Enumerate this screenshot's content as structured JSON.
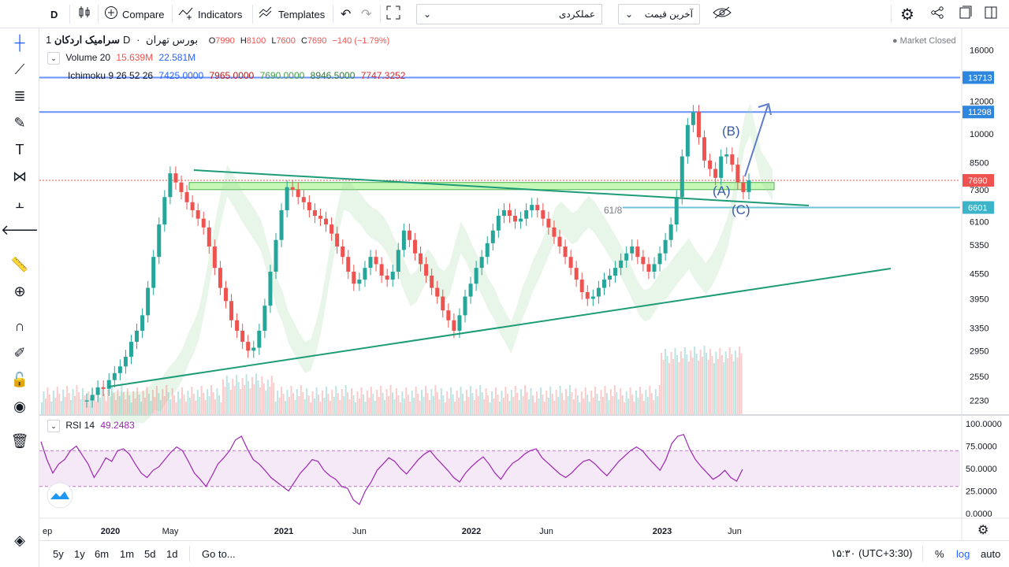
{
  "toolbar": {
    "interval": "D",
    "compare": "Compare",
    "indicators": "Indicators",
    "templates": "Templates",
    "dropdown_performance": "عملکردی",
    "dropdown_price": "آخرین قیمت"
  },
  "legend": {
    "symbol": "سرامیک اردکان",
    "interval": "1D",
    "exchange": "بورس تهران",
    "o_label": "O",
    "o": "7990",
    "h_label": "H",
    "h": "8100",
    "l_label": "L",
    "l": "7600",
    "c_label": "C",
    "c": "7690",
    "change": "−140 (−1.79%)",
    "market_status": "Market Closed",
    "volume_label": "Volume 20",
    "volume_v1": "15.639M",
    "volume_v2": "22.581M",
    "ichimoku_label": "Ichimoku 9 26 52 26",
    "ichi1": "7425.0000",
    "ichi2": "7965.0000",
    "ichi3": "7690.0000",
    "ichi4": "8946.5000",
    "ichi5": "7747.3252",
    "rsi_label": "RSI 14",
    "rsi_value": "49.2483"
  },
  "bottombar": {
    "ranges": [
      "5y",
      "1y",
      "6m",
      "1m",
      "5d",
      "1d"
    ],
    "goto": "Go to...",
    "timezone": "۱۵:۳۰ (UTC+3:30)",
    "percent": "%",
    "log": "log",
    "auto": "auto"
  },
  "colors": {
    "up": "#26a69a",
    "down": "#ef5350",
    "hline": "#2962ff",
    "trend": "#1e9c78",
    "rsi": "#9c27b0",
    "zone": "#b9f6a6",
    "wave": "#3b5ca8"
  },
  "chart_data": [
    {
      "type": "candlestick",
      "title": "سرامیک اردکان · 1D · بورس تهران",
      "scale": "log",
      "y_ticks": [
        16000,
        12000,
        10000,
        8500,
        7300,
        6100,
        5350,
        4550,
        3950,
        3350,
        2950,
        2550,
        2230
      ],
      "x_ticks": [
        "ep",
        "2020",
        "May",
        "2021",
        "Jun",
        "2022",
        "Jun",
        "2023",
        "Jun"
      ],
      "price_labels": [
        {
          "value": 13713,
          "kind": "hline"
        },
        {
          "value": 11298,
          "kind": "hline"
        },
        {
          "value": 7690,
          "kind": "last"
        },
        {
          "value": 6601,
          "kind": "hline"
        }
      ],
      "annotations": [
        "(B)",
        "(A)",
        "(C)",
        "61/8"
      ],
      "support_zone": [
        7300,
        7600
      ],
      "close_series": [
        2230,
        2300,
        2400,
        2380,
        2500,
        2600,
        2700,
        2850,
        3100,
        3300,
        3600,
        4200,
        5000,
        6000,
        7000,
        8000,
        7600,
        7200,
        6800,
        6500,
        6200,
        5900,
        5300,
        4700,
        4200,
        3900,
        3500,
        3300,
        3100,
        2950,
        3000,
        3300,
        3800,
        4600,
        5500,
        6500,
        7400,
        7300,
        7000,
        6800,
        6500,
        6300,
        6200,
        6000,
        5700,
        5300,
        5000,
        4600,
        4300,
        4400,
        4700,
        5000,
        4800,
        4500,
        4400,
        4600,
        5200,
        5800,
        5500,
        5100,
        4800,
        4500,
        4200,
        4000,
        3700,
        3500,
        3300,
        3600,
        4000,
        4300,
        4700,
        5000,
        5400,
        5800,
        6300,
        6500,
        6300,
        6100,
        6200,
        6500,
        6700,
        6500,
        6200,
        5900,
        5600,
        5300,
        5000,
        4700,
        4400,
        4100,
        3950,
        4000,
        4200,
        4400,
        4500,
        4700,
        4900,
        5100,
        5300,
        5000,
        4800,
        4600,
        4800,
        5100,
        5500,
        6000,
        7000,
        8800,
        10500,
        11300,
        9800,
        8600,
        8200,
        7800,
        8800,
        8900,
        8400,
        7600,
        7200,
        7690
      ],
      "volume_note": "volume histogram (red/green) under candles",
      "rsi": {
        "levels": [
          70,
          30
        ],
        "y_ticks": [
          "100.0000",
          "75.0000",
          "50.0000",
          "25.0000",
          "0.0000"
        ],
        "series": [
          80,
          60,
          45,
          55,
          60,
          70,
          75,
          65,
          55,
          40,
          50,
          62,
          58,
          70,
          72,
          66,
          55,
          45,
          40,
          48,
          52,
          60,
          68,
          74,
          70,
          58,
          45,
          38,
          30,
          42,
          55,
          62,
          70,
          82,
          86,
          72,
          60,
          55,
          48,
          40,
          35,
          30,
          25,
          35,
          45,
          52,
          60,
          58,
          48,
          42,
          38,
          30,
          28,
          15,
          10,
          25,
          35,
          48,
          55,
          62,
          58,
          50,
          44,
          52,
          60,
          66,
          70,
          62,
          55,
          48,
          40,
          35,
          45,
          52,
          58,
          63,
          55,
          45,
          38,
          48,
          56,
          60,
          66,
          70,
          72,
          62,
          56,
          50,
          44,
          40,
          45,
          52,
          58,
          60,
          55,
          48,
          42,
          50,
          58,
          64,
          70,
          74,
          70,
          62,
          55,
          48,
          60,
          78,
          86,
          88,
          72,
          60,
          52,
          45,
          38,
          42,
          48,
          40,
          36,
          49.2
        ]
      }
    }
  ]
}
